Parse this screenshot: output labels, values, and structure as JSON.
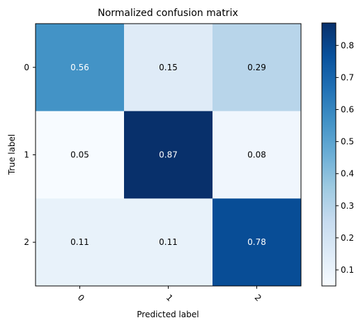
{
  "chart_data": {
    "type": "heatmap",
    "title": "Normalized confusion matrix",
    "xlabel": "Predicted label",
    "ylabel": "True label",
    "x_ticks": [
      "0",
      "1",
      "2"
    ],
    "y_ticks": [
      "0",
      "1",
      "2"
    ],
    "matrix": [
      [
        0.56,
        0.15,
        0.29
      ],
      [
        0.05,
        0.87,
        0.08
      ],
      [
        0.11,
        0.11,
        0.78
      ]
    ],
    "cell_labels": [
      [
        "0.56",
        "0.15",
        "0.29"
      ],
      [
        "0.05",
        "0.87",
        "0.08"
      ],
      [
        "0.11",
        "0.11",
        "0.78"
      ]
    ],
    "colormap": "Blues",
    "colorbar": {
      "range": [
        0.05,
        0.87
      ],
      "ticks": [
        0.1,
        0.2,
        0.3,
        0.4,
        0.5,
        0.6,
        0.7,
        0.8
      ],
      "tick_labels": [
        "0.1",
        "0.2",
        "0.3",
        "0.4",
        "0.5",
        "0.6",
        "0.7",
        "0.8"
      ]
    },
    "x_tick_rotation_deg": 45,
    "grid": false,
    "text_color_dark": "#000000",
    "text_color_light": "#ffffff"
  }
}
